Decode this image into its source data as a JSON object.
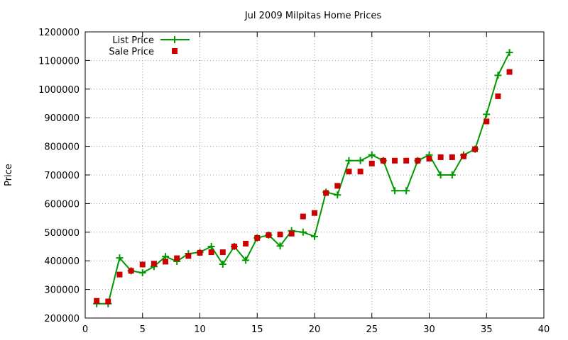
{
  "chart_data": {
    "type": "line",
    "title": "Jul 2009 Milpitas Home Prices",
    "xlabel": "",
    "ylabel": "Price",
    "xlim": [
      0,
      40
    ],
    "ylim": [
      200000,
      1200000
    ],
    "x_ticks": [
      0,
      5,
      10,
      15,
      20,
      25,
      30,
      35,
      40
    ],
    "y_ticks": [
      200000,
      300000,
      400000,
      500000,
      600000,
      700000,
      800000,
      900000,
      1000000,
      1100000,
      1200000
    ],
    "grid": true,
    "legend_position": "top-left",
    "series": [
      {
        "name": "List Price",
        "style": "line+plus-markers",
        "color": "#009900",
        "x": [
          1,
          2,
          3,
          4,
          5,
          6,
          7,
          8,
          9,
          10,
          11,
          12,
          13,
          14,
          15,
          16,
          17,
          18,
          19,
          20,
          21,
          22,
          23,
          24,
          25,
          26,
          27,
          28,
          29,
          30,
          31,
          32,
          33,
          34,
          35,
          36,
          37
        ],
        "y": [
          250000,
          250000,
          410000,
          365000,
          358000,
          380000,
          415000,
          398000,
          425000,
          430000,
          450000,
          388000,
          450000,
          402000,
          480000,
          490000,
          452000,
          505000,
          500000,
          485000,
          640000,
          630000,
          750000,
          750000,
          770000,
          750000,
          645000,
          645000,
          750000,
          770000,
          700000,
          700000,
          770000,
          790000,
          912000,
          1048000,
          1128000
        ]
      },
      {
        "name": "Sale Price",
        "style": "square-markers",
        "color": "#cc0000",
        "x": [
          1,
          2,
          3,
          4,
          5,
          6,
          7,
          8,
          9,
          10,
          11,
          12,
          13,
          14,
          15,
          16,
          17,
          18,
          19,
          20,
          21,
          22,
          23,
          24,
          25,
          26,
          27,
          28,
          29,
          30,
          31,
          32,
          33,
          34,
          35,
          36,
          37
        ],
        "y": [
          260000,
          258000,
          352000,
          365000,
          387000,
          390000,
          397000,
          409000,
          417000,
          428000,
          430000,
          430000,
          450000,
          460000,
          480000,
          490000,
          492000,
          495000,
          555000,
          567000,
          637000,
          662000,
          712000,
          712000,
          740000,
          750000,
          750000,
          750000,
          750000,
          757000,
          762000,
          762000,
          765000,
          790000,
          887000,
          975000,
          1060000
        ]
      }
    ]
  }
}
